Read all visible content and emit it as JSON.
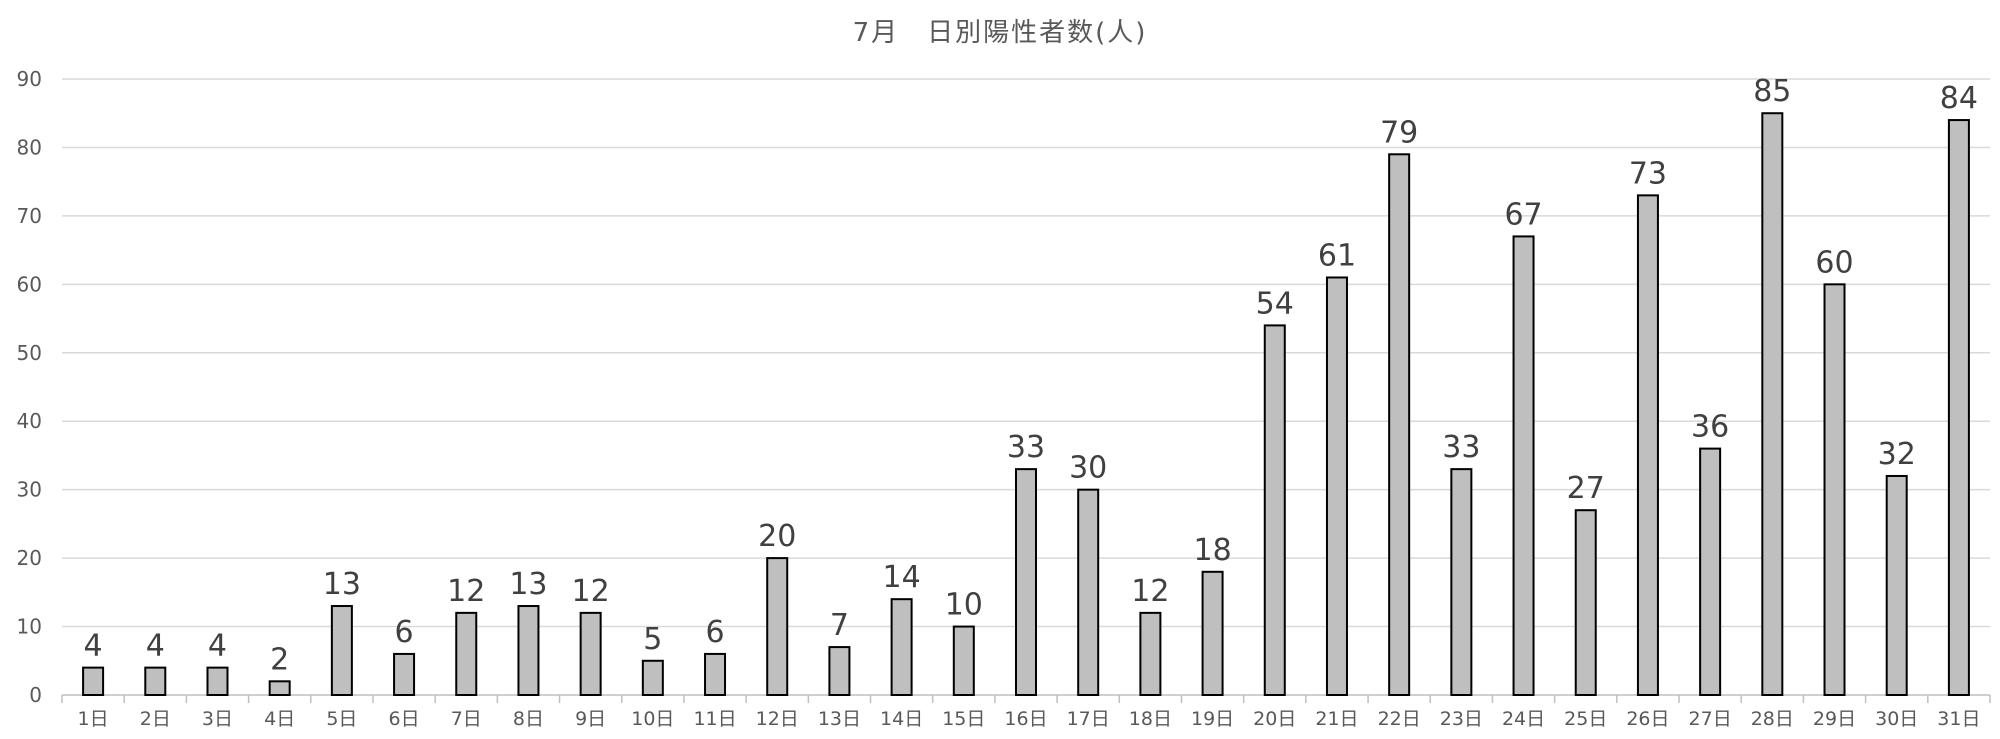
{
  "chart_data": {
    "type": "bar",
    "title": "7月　日別陽性者数(人)",
    "xlabel": "",
    "ylabel": "",
    "ylim": [
      0,
      90
    ],
    "yticks": [
      0,
      10,
      20,
      30,
      40,
      50,
      60,
      70,
      80,
      90
    ],
    "grid": true,
    "legend": "none",
    "bar_color": "#bfbfbf",
    "bar_edge_color": "#000000",
    "categories": [
      "1日",
      "2日",
      "3日",
      "4日",
      "5日",
      "6日",
      "7日",
      "8日",
      "9日",
      "10日",
      "11日",
      "12日",
      "13日",
      "14日",
      "15日",
      "16日",
      "17日",
      "18日",
      "19日",
      "20日",
      "21日",
      "22日",
      "23日",
      "24日",
      "25日",
      "26日",
      "27日",
      "28日",
      "29日",
      "30日",
      "31日"
    ],
    "values": [
      4,
      4,
      4,
      2,
      13,
      6,
      12,
      13,
      12,
      5,
      6,
      20,
      7,
      14,
      10,
      33,
      30,
      12,
      18,
      54,
      61,
      79,
      33,
      67,
      27,
      73,
      36,
      85,
      60,
      32,
      84
    ]
  }
}
